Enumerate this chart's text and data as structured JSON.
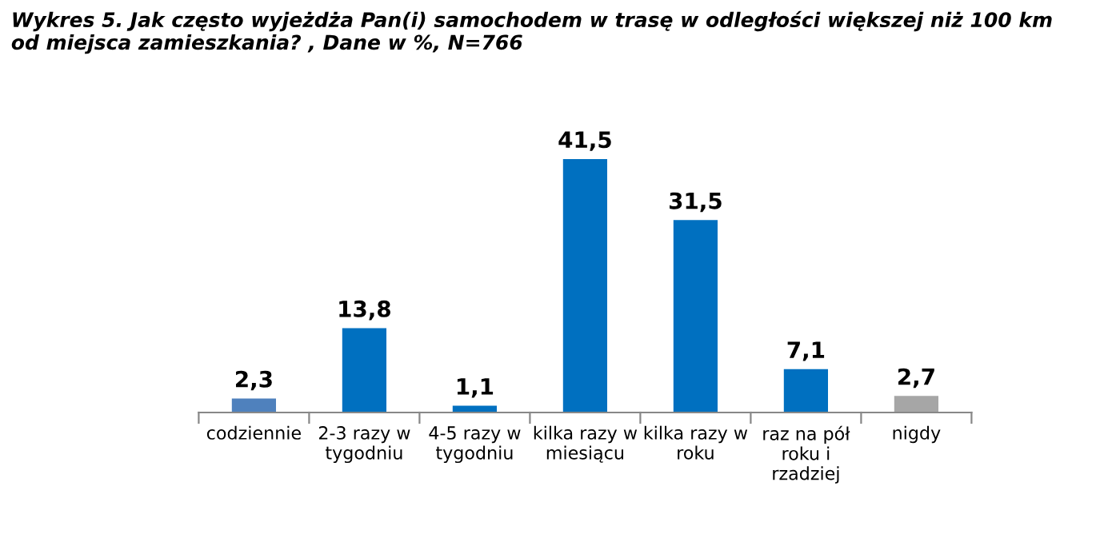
{
  "chart_data": {
    "type": "bar",
    "title": "Wykres 5. Jak często wyjeżdża Pan(i) samochodem w trasę w odległości większej niż 100 km\nod miejsca zamieszkania? , Dane w %, N=766",
    "categories": [
      "codziennie",
      "2-3 razy w\ntygodniu",
      "4-5 razy w\ntygodniu",
      "kilka razy w\nmiesiącu",
      "kilka razy w\nroku",
      "raz na pół\nroku i\nrzadziej",
      "nigdy"
    ],
    "values": [
      2.3,
      13.8,
      1.1,
      41.5,
      31.5,
      7.1,
      2.7
    ],
    "colors": [
      "#4f81bd",
      "#0070c0",
      "#0070c0",
      "#0070c0",
      "#0070c0",
      "#0070c0",
      "#a6a6a6"
    ],
    "value_labels": [
      "2,3",
      "13,8",
      "1,1",
      "41,5",
      "31,5",
      "7,1",
      "2,7"
    ],
    "grid": false,
    "legend": false
  }
}
